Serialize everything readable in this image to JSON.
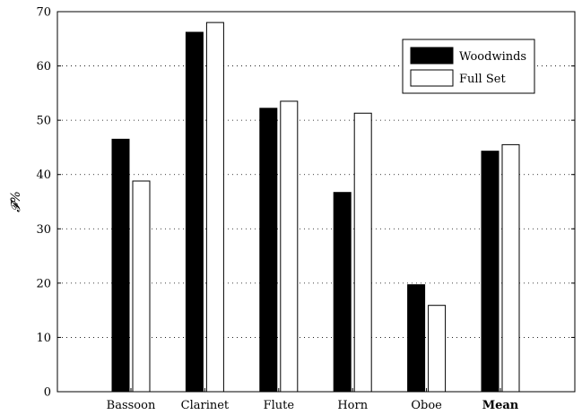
{
  "chart_data": {
    "type": "bar",
    "title": "",
    "xlabel": "",
    "ylabel": "𝓕%",
    "ylim": [
      0,
      70
    ],
    "yticks": [
      0,
      10,
      20,
      30,
      40,
      50,
      60,
      70
    ],
    "grid": true,
    "legend_position": "top-right",
    "categories": [
      "Bassoon",
      "Clarinet",
      "Flute",
      "Horn",
      "Oboe",
      "Mean"
    ],
    "bold_categories": [
      "Mean"
    ],
    "series": [
      {
        "name": "Woodwinds",
        "color": "#000000",
        "values": [
          46.5,
          66.2,
          52.2,
          36.7,
          19.7,
          44.3
        ]
      },
      {
        "name": "Full Set",
        "color": "#ffffff",
        "values": [
          38.8,
          68.0,
          53.5,
          51.3,
          15.9,
          45.5
        ]
      }
    ]
  }
}
